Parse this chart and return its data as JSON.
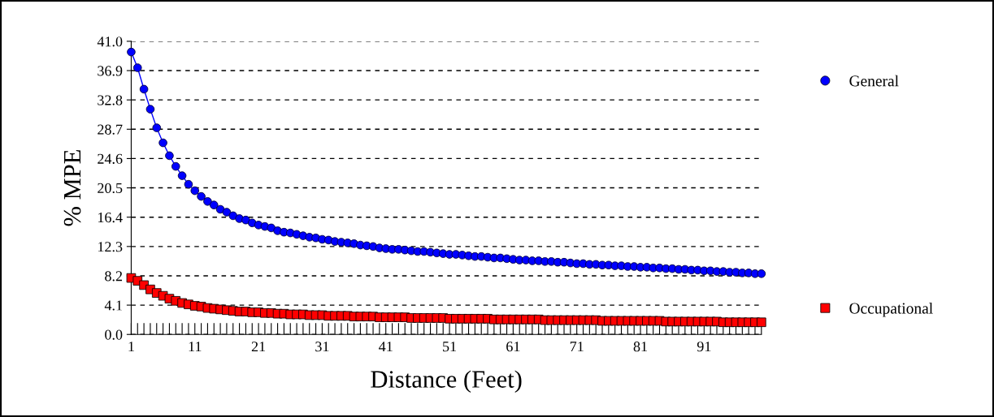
{
  "chart_data": {
    "type": "line",
    "xlabel": "Distance (Feet)",
    "ylabel": "% MPE",
    "x": [
      1,
      2,
      3,
      4,
      5,
      6,
      7,
      8,
      9,
      10,
      11,
      12,
      13,
      14,
      15,
      16,
      17,
      18,
      19,
      20,
      21,
      22,
      23,
      24,
      25,
      26,
      27,
      28,
      29,
      30,
      31,
      32,
      33,
      34,
      35,
      36,
      37,
      38,
      39,
      40,
      41,
      42,
      43,
      44,
      45,
      46,
      47,
      48,
      49,
      50,
      51,
      52,
      53,
      54,
      55,
      56,
      57,
      58,
      59,
      60,
      61,
      62,
      63,
      64,
      65,
      66,
      67,
      68,
      69,
      70,
      71,
      72,
      73,
      74,
      75,
      76,
      77,
      78,
      79,
      80,
      81,
      82,
      83,
      84,
      85,
      86,
      87,
      88,
      89,
      90,
      91,
      92,
      93,
      94,
      95,
      96,
      97,
      98,
      99,
      100
    ],
    "series": [
      {
        "name": "General",
        "marker": "circle",
        "line_style": "solid",
        "color": "#0000ff",
        "values": [
          39.5,
          37.3,
          34.3,
          31.5,
          28.9,
          26.8,
          25.0,
          23.5,
          22.2,
          21.0,
          20.1,
          19.3,
          18.6,
          18.1,
          17.5,
          17.1,
          16.6,
          16.2,
          16.0,
          15.6,
          15.3,
          15.1,
          14.9,
          14.5,
          14.3,
          14.2,
          14.0,
          13.8,
          13.6,
          13.5,
          13.3,
          13.2,
          13.0,
          12.9,
          12.8,
          12.7,
          12.5,
          12.4,
          12.3,
          12.1,
          12.0,
          11.9,
          11.9,
          11.8,
          11.7,
          11.6,
          11.6,
          11.5,
          11.4,
          11.3,
          11.2,
          11.2,
          11.1,
          11.0,
          10.9,
          10.9,
          10.8,
          10.7,
          10.7,
          10.6,
          10.5,
          10.4,
          10.4,
          10.3,
          10.3,
          10.2,
          10.2,
          10.1,
          10.1,
          10.0,
          9.9,
          9.9,
          9.8,
          9.8,
          9.7,
          9.7,
          9.6,
          9.6,
          9.5,
          9.5,
          9.4,
          9.4,
          9.3,
          9.3,
          9.2,
          9.2,
          9.1,
          9.1,
          9.0,
          9.0,
          8.9,
          8.9,
          8.8,
          8.8,
          8.7,
          8.7,
          8.6,
          8.6,
          8.5,
          8.5
        ]
      },
      {
        "name": "Occupational",
        "type": "scatter",
        "marker": "square",
        "color": "#ff0000",
        "values": [
          7.9,
          7.5,
          6.9,
          6.3,
          5.8,
          5.4,
          5.0,
          4.7,
          4.4,
          4.2,
          4.0,
          3.9,
          3.7,
          3.6,
          3.5,
          3.4,
          3.3,
          3.2,
          3.2,
          3.1,
          3.1,
          3.0,
          3.0,
          2.9,
          2.9,
          2.8,
          2.8,
          2.8,
          2.7,
          2.7,
          2.7,
          2.6,
          2.6,
          2.6,
          2.6,
          2.5,
          2.5,
          2.5,
          2.5,
          2.4,
          2.4,
          2.4,
          2.4,
          2.4,
          2.3,
          2.3,
          2.3,
          2.3,
          2.3,
          2.3,
          2.2,
          2.2,
          2.2,
          2.2,
          2.2,
          2.2,
          2.2,
          2.1,
          2.1,
          2.1,
          2.1,
          2.1,
          2.1,
          2.1,
          2.1,
          2.0,
          2.0,
          2.0,
          2.0,
          2.0,
          2.0,
          2.0,
          2.0,
          2.0,
          1.9,
          1.9,
          1.9,
          1.9,
          1.9,
          1.9,
          1.9,
          1.9,
          1.9,
          1.9,
          1.8,
          1.8,
          1.8,
          1.8,
          1.8,
          1.8,
          1.8,
          1.8,
          1.8,
          1.7,
          1.7,
          1.7,
          1.7,
          1.7,
          1.7,
          1.7
        ]
      }
    ],
    "xlim": [
      1,
      100
    ],
    "xticks": [
      1,
      {
        "value": 2,
        "label": null
      },
      {
        "value": 3,
        "label": null
      },
      {
        "value": 4,
        "label": null
      },
      {
        "value": 5,
        "label": null
      },
      {
        "value": 6,
        "label": null
      },
      {
        "value": 7,
        "label": null
      },
      {
        "value": 8,
        "label": null
      },
      {
        "value": 9,
        "label": null
      },
      {
        "value": 10,
        "label": null
      },
      11,
      {
        "value": 12,
        "label": null
      },
      {
        "value": 13,
        "label": null
      },
      {
        "value": 14,
        "label": null
      },
      {
        "value": 15,
        "label": null
      },
      {
        "value": 16,
        "label": null
      },
      {
        "value": 17,
        "label": null
      },
      {
        "value": 18,
        "label": null
      },
      {
        "value": 19,
        "label": null
      },
      {
        "value": 20,
        "label": null
      },
      21,
      {
        "value": 22,
        "label": null
      },
      {
        "value": 23,
        "label": null
      },
      {
        "value": 24,
        "label": null
      },
      {
        "value": 25,
        "label": null
      },
      {
        "value": 26,
        "label": null
      },
      {
        "value": 27,
        "label": null
      },
      {
        "value": 28,
        "label": null
      },
      {
        "value": 29,
        "label": null
      },
      {
        "value": 30,
        "label": null
      },
      31,
      {
        "value": 32,
        "label": null
      },
      {
        "value": 33,
        "label": null
      },
      {
        "value": 34,
        "label": null
      },
      {
        "value": 35,
        "label": null
      },
      {
        "value": 36,
        "label": null
      },
      {
        "value": 37,
        "label": null
      },
      {
        "value": 38,
        "label": null
      },
      {
        "value": 39,
        "label": null
      },
      {
        "value": 40,
        "label": null
      },
      41,
      {
        "value": 42,
        "label": null
      },
      {
        "value": 43,
        "label": null
      },
      {
        "value": 44,
        "label": null
      },
      {
        "value": 45,
        "label": null
      },
      {
        "value": 46,
        "label": null
      },
      {
        "value": 47,
        "label": null
      },
      {
        "value": 48,
        "label": null
      },
      {
        "value": 49,
        "label": null
      },
      {
        "value": 50,
        "label": null
      },
      51,
      {
        "value": 52,
        "label": null
      },
      {
        "value": 53,
        "label": null
      },
      {
        "value": 54,
        "label": null
      },
      {
        "value": 55,
        "label": null
      },
      {
        "value": 56,
        "label": null
      },
      {
        "value": 57,
        "label": null
      },
      {
        "value": 58,
        "label": null
      },
      {
        "value": 59,
        "label": null
      },
      {
        "value": 60,
        "label": null
      },
      61,
      {
        "value": 62,
        "label": null
      },
      {
        "value": 63,
        "label": null
      },
      {
        "value": 64,
        "label": null
      },
      {
        "value": 65,
        "label": null
      },
      {
        "value": 66,
        "label": null
      },
      {
        "value": 67,
        "label": null
      },
      {
        "value": 68,
        "label": null
      },
      {
        "value": 69,
        "label": null
      },
      {
        "value": 70,
        "label": null
      },
      71,
      {
        "value": 72,
        "label": null
      },
      {
        "value": 73,
        "label": null
      },
      {
        "value": 74,
        "label": null
      },
      {
        "value": 75,
        "label": null
      },
      {
        "value": 76,
        "label": null
      },
      {
        "value": 77,
        "label": null
      },
      {
        "value": 78,
        "label": null
      },
      {
        "value": 79,
        "label": null
      },
      {
        "value": 80,
        "label": null
      },
      81,
      {
        "value": 82,
        "label": null
      },
      {
        "value": 83,
        "label": null
      },
      {
        "value": 84,
        "label": null
      },
      {
        "value": 85,
        "label": null
      },
      {
        "value": 86,
        "label": null
      },
      {
        "value": 87,
        "label": null
      },
      {
        "value": 88,
        "label": null
      },
      {
        "value": 89,
        "label": null
      },
      {
        "value": 90,
        "label": null
      },
      91,
      {
        "value": 92,
        "label": null
      },
      {
        "value": 93,
        "label": null
      },
      {
        "value": 94,
        "label": null
      },
      {
        "value": 95,
        "label": null
      },
      {
        "value": 96,
        "label": null
      },
      {
        "value": 97,
        "label": null
      },
      {
        "value": 98,
        "label": null
      },
      {
        "value": 99,
        "label": null
      },
      {
        "value": 100,
        "label": null
      }
    ],
    "ylim": [
      0.0,
      41.0
    ],
    "yticks": [
      {
        "value": 0,
        "label": "0.0"
      },
      4.1,
      8.2,
      12.3,
      16.4,
      20.5,
      24.6,
      28.7,
      32.8,
      36.9,
      {
        "value": 41,
        "label": "41.0"
      }
    ],
    "grid": "y",
    "legend": "right"
  }
}
